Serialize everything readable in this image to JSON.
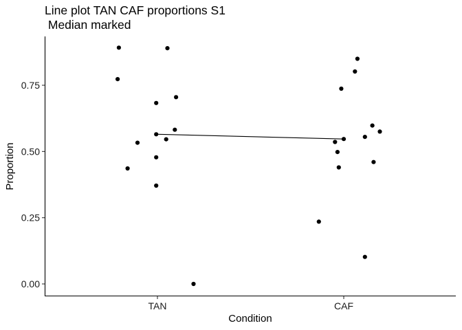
{
  "chart_data": {
    "type": "scatter",
    "title_line1": "Line plot TAN CAF proportions S1",
    "title_line2": " Median marked",
    "xlabel": "Condition",
    "ylabel": "Proportion",
    "categories": [
      "TAN",
      "CAF"
    ],
    "ylim": [
      -0.05,
      0.93
    ],
    "yticks": [
      0.0,
      0.25,
      0.5,
      0.75
    ],
    "ytick_labels": [
      "0.00",
      "0.25",
      "0.50",
      "0.75"
    ],
    "grid": false,
    "legend": "none",
    "colors": {
      "points": "#000000",
      "axis": "#000000",
      "line": "#000000"
    },
    "series": [
      {
        "category": "TAN",
        "points": [
          {
            "jitter": -0.31,
            "y": 0.892
          },
          {
            "jitter": 0.08,
            "y": 0.89
          },
          {
            "jitter": -0.32,
            "y": 0.773
          },
          {
            "jitter": 0.15,
            "y": 0.705
          },
          {
            "jitter": -0.01,
            "y": 0.683
          },
          {
            "jitter": 0.14,
            "y": 0.582
          },
          {
            "jitter": -0.01,
            "y": 0.565
          },
          {
            "jitter": 0.07,
            "y": 0.546
          },
          {
            "jitter": -0.16,
            "y": 0.533
          },
          {
            "jitter": -0.01,
            "y": 0.478
          },
          {
            "jitter": -0.24,
            "y": 0.436
          },
          {
            "jitter": -0.01,
            "y": 0.371
          },
          {
            "jitter": 0.29,
            "y": 0.0
          }
        ],
        "median": 0.565
      },
      {
        "category": "CAF",
        "points": [
          {
            "jitter": 0.11,
            "y": 0.85
          },
          {
            "jitter": 0.09,
            "y": 0.802
          },
          {
            "jitter": -0.02,
            "y": 0.737
          },
          {
            "jitter": 0.23,
            "y": 0.598
          },
          {
            "jitter": 0.29,
            "y": 0.575
          },
          {
            "jitter": 0.17,
            "y": 0.555
          },
          {
            "jitter": 0.0,
            "y": 0.547
          },
          {
            "jitter": -0.07,
            "y": 0.536
          },
          {
            "jitter": -0.05,
            "y": 0.498
          },
          {
            "jitter": 0.24,
            "y": 0.46
          },
          {
            "jitter": -0.04,
            "y": 0.44
          },
          {
            "jitter": -0.2,
            "y": 0.235
          },
          {
            "jitter": 0.17,
            "y": 0.102
          }
        ],
        "median": 0.547
      }
    ]
  }
}
